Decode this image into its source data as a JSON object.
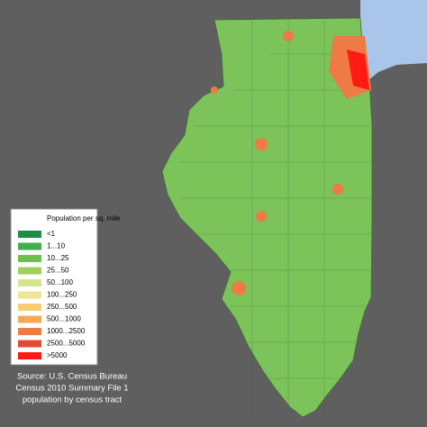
{
  "legend": {
    "title": "Population per sq. mile",
    "items": [
      {
        "label": "<1",
        "color": "#1e8c45"
      },
      {
        "label": "1...10",
        "color": "#3fae4c"
      },
      {
        "label": "10...25",
        "color": "#6dbf50"
      },
      {
        "label": "25...50",
        "color": "#9fd05e"
      },
      {
        "label": "50...100",
        "color": "#d3e58c"
      },
      {
        "label": "100...250",
        "color": "#efe597"
      },
      {
        "label": "250...500",
        "color": "#f7cf72"
      },
      {
        "label": "500...1000",
        "color": "#f6a955"
      },
      {
        "label": "1000...2500",
        "color": "#ee7a45"
      },
      {
        "label": "2500...5000",
        "color": "#e34c34"
      },
      {
        "label": ">5000",
        "color": "#ff1a12"
      }
    ]
  },
  "source": {
    "lines": [
      "Source: U.S. Census Bureau",
      "Census 2010 Summary File 1",
      "population by census tract"
    ]
  }
}
